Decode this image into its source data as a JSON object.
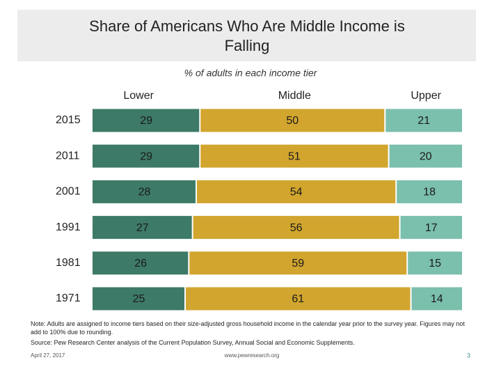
{
  "chart_data": {
    "type": "stacked-bar",
    "orientation": "horizontal",
    "title": "Share of Americans Who Are Middle Income is Falling",
    "subtitle": "% of adults in each income tier",
    "categories": [
      "2015",
      "2011",
      "2001",
      "1991",
      "1981",
      "1971"
    ],
    "series": [
      {
        "name": "Lower",
        "color": "#3d7a67",
        "values": [
          29,
          29,
          28,
          27,
          26,
          25
        ]
      },
      {
        "name": "Middle",
        "color": "#d1a52e",
        "values": [
          50,
          51,
          54,
          56,
          59,
          61
        ]
      },
      {
        "name": "Upper",
        "color": "#7bbfad",
        "values": [
          21,
          20,
          18,
          17,
          15,
          14
        ]
      }
    ],
    "xlim": [
      0,
      100
    ]
  },
  "note": "Note: Adults are assigned to income tiers based on their size-adjusted gross household income in the calendar year prior to the survey year. Figures may not add to 100% due to rounding.",
  "source": "Source: Pew Research Center analysis of the Current Population Survey, Annual Social and Economic Supplements.",
  "footer": {
    "date": "April 27, 2017",
    "url": "www.pewresearch.org",
    "page": "3"
  }
}
